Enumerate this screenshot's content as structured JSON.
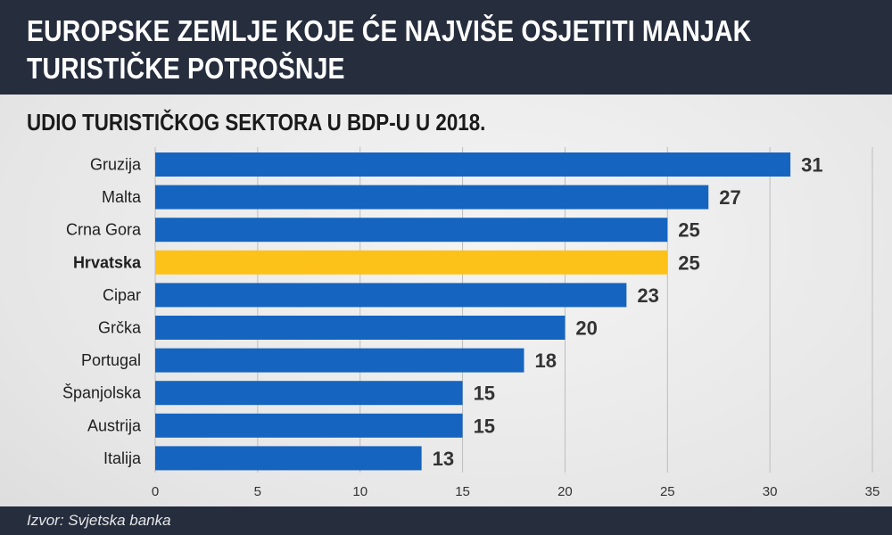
{
  "header": {
    "title_line1": "EUROPSKE ZEMLJE KOJE ĆE NAJVIŠE OSJETITI MANJAK",
    "title_line2": "TURISTIČKE POTROŠNJE"
  },
  "footer": {
    "source": "Izvor: Svjetska banka"
  },
  "colors": {
    "bar": "#1565c0",
    "highlight": "#fcc21a",
    "header_bg": "#262d3d",
    "value_text": "#333333"
  },
  "chart_data": {
    "type": "bar",
    "orientation": "horizontal",
    "title": "UDIO TURISTIČKOG SEKTORA U BDP-U U 2018.",
    "xlabel": "",
    "ylabel": "",
    "categories": [
      "Gruzija",
      "Malta",
      "Crna Gora",
      "Hrvatska",
      "Cipar",
      "Grčka",
      "Portugal",
      "Španjolska",
      "Austrija",
      "Italija"
    ],
    "values": [
      31,
      27,
      25,
      25,
      23,
      20,
      18,
      15,
      15,
      13
    ],
    "highlighted_category": "Hrvatska",
    "xlim": [
      0,
      35
    ],
    "xticks": [
      0,
      5,
      10,
      15,
      20,
      25,
      30,
      35
    ],
    "grid": true,
    "legend": "none"
  }
}
